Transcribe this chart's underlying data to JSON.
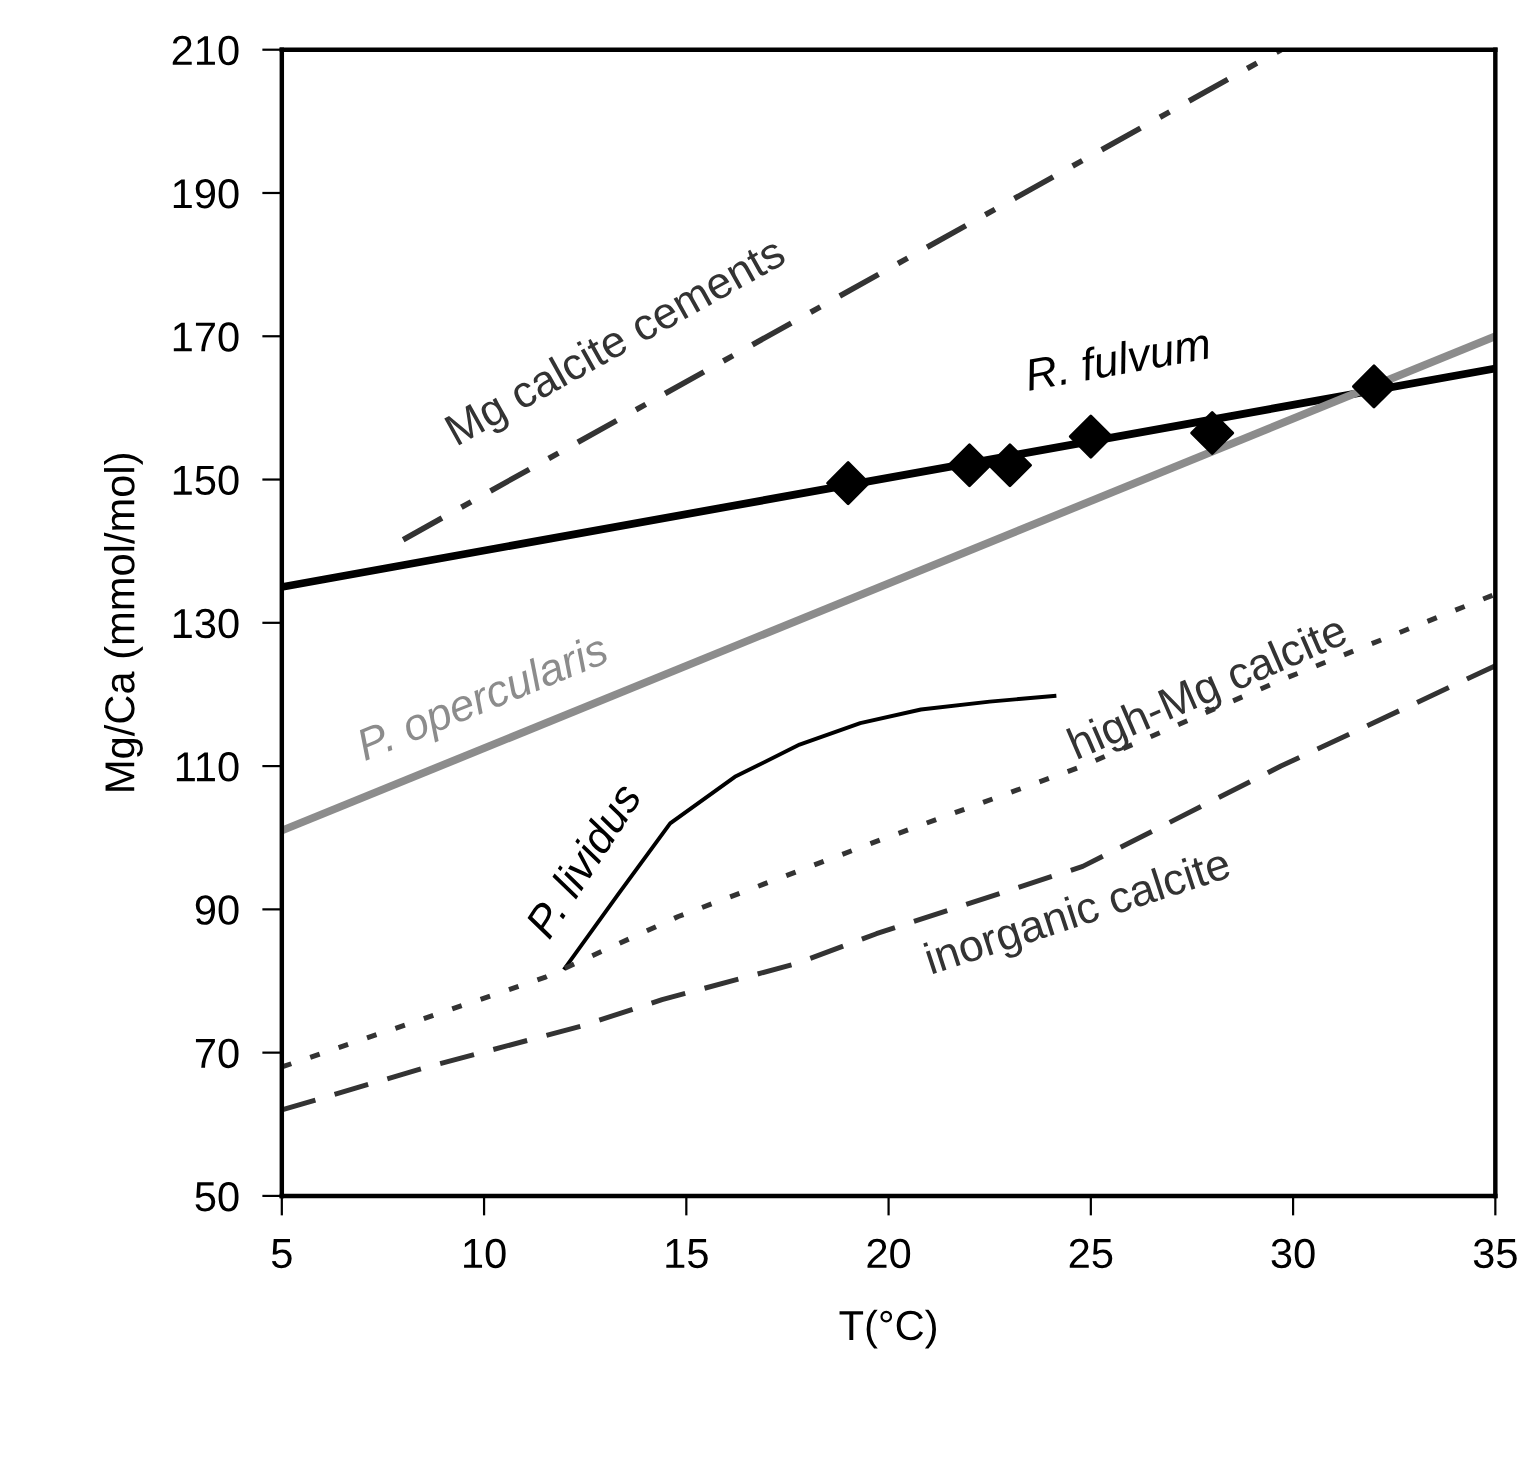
{
  "chart_data": {
    "type": "line",
    "xlabel": "T(°C)",
    "ylabel": "Mg/Ca (mmol/mol)",
    "xlim": [
      5,
      35
    ],
    "ylim": [
      50,
      210
    ],
    "xticks": [
      5,
      10,
      15,
      20,
      25,
      30,
      35
    ],
    "yticks": [
      50,
      70,
      90,
      110,
      130,
      150,
      170,
      190,
      210
    ],
    "grid": false,
    "series": [
      {
        "name": "Mg calcite cements",
        "color": "#333333",
        "line_style": "dashdot",
        "x": [
          8,
          29.7
        ],
        "values": [
          141.6,
          210
        ]
      },
      {
        "type": "scatter",
        "color": "#000000",
        "marker": "diamond",
        "x": [
          19,
          22,
          23,
          25,
          28,
          32
        ],
        "values": [
          149.5,
          152,
          152,
          156,
          156.5,
          163
        ]
      },
      {
        "name": "R. fulvum",
        "color": "#000000",
        "line_style": "solid",
        "x": [
          5,
          35
        ],
        "values": [
          135,
          165.5
        ]
      },
      {
        "name": "P. opercularis",
        "color": "#8c8c8c",
        "line_style": "solid",
        "x": [
          5,
          35
        ],
        "values": [
          101,
          170
        ]
      },
      {
        "name": "P. lividus",
        "color": "#000000",
        "line_style": "solid",
        "x": [
          12,
          13.3,
          14.6,
          16.2,
          17.8,
          19.3,
          20.8,
          22.5,
          24.1
        ],
        "values": [
          81.8,
          92,
          102,
          108.5,
          113,
          116,
          117.9,
          119,
          119.8
        ]
      },
      {
        "name": "high-Mg calcite",
        "color": "#333333",
        "line_style": "dotted",
        "x": [
          5,
          11.5,
          14.8,
          19.8,
          24.8,
          29.7,
          35
        ],
        "values": [
          68,
          80.5,
          89,
          99.7,
          110,
          122,
          134
        ]
      },
      {
        "name": "inorganic calcite",
        "color": "#333333",
        "line_style": "dashed",
        "x": [
          5,
          8.6,
          12.4,
          14.4,
          17.7,
          19.7,
          24.8,
          29.7,
          35
        ],
        "values": [
          62,
          68,
          73.7,
          77.4,
          82.4,
          86.6,
          96,
          110,
          124
        ]
      }
    ]
  }
}
